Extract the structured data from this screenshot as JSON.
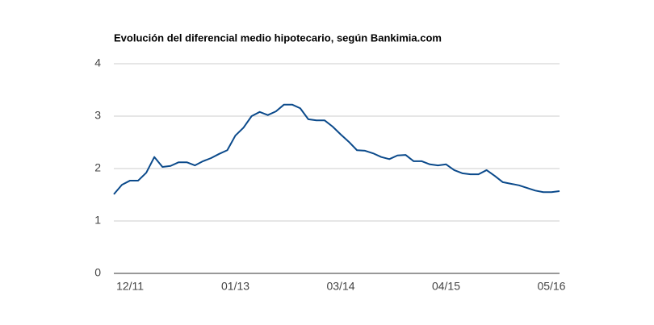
{
  "chart_data": {
    "type": "line",
    "title": "Evolución del diferencial medio hipotecario, según Bankimia.com",
    "categories": [
      null,
      null,
      "12/11",
      null,
      null,
      null,
      null,
      null,
      null,
      null,
      null,
      null,
      null,
      null,
      null,
      "01/13",
      null,
      null,
      null,
      null,
      null,
      null,
      null,
      null,
      null,
      null,
      null,
      null,
      "03/14",
      null,
      null,
      null,
      null,
      null,
      null,
      null,
      null,
      null,
      null,
      null,
      null,
      "04/15",
      null,
      null,
      null,
      null,
      null,
      null,
      null,
      null,
      null,
      null,
      null,
      null,
      "05/16",
      null
    ],
    "series": [
      {
        "name": "Diferencial medio",
        "color": "#0b4a8b",
        "values": [
          1.51,
          1.69,
          1.77,
          1.77,
          1.92,
          2.22,
          2.03,
          2.05,
          2.12,
          2.12,
          2.06,
          2.14,
          2.2,
          2.28,
          2.35,
          2.63,
          2.78,
          3.0,
          3.08,
          3.02,
          3.09,
          3.22,
          3.22,
          3.15,
          2.94,
          2.92,
          2.92,
          2.8,
          2.65,
          2.51,
          2.35,
          2.34,
          2.29,
          2.22,
          2.18,
          2.25,
          2.26,
          2.14,
          2.14,
          2.08,
          2.06,
          2.08,
          1.97,
          1.91,
          1.89,
          1.89,
          1.97,
          1.86,
          1.74,
          1.71,
          1.68,
          1.63,
          1.58,
          1.55,
          1.55,
          1.57
        ]
      }
    ],
    "ylim": [
      0,
      4
    ],
    "yticks": [
      0,
      1,
      2,
      3,
      4
    ],
    "grid": true
  }
}
